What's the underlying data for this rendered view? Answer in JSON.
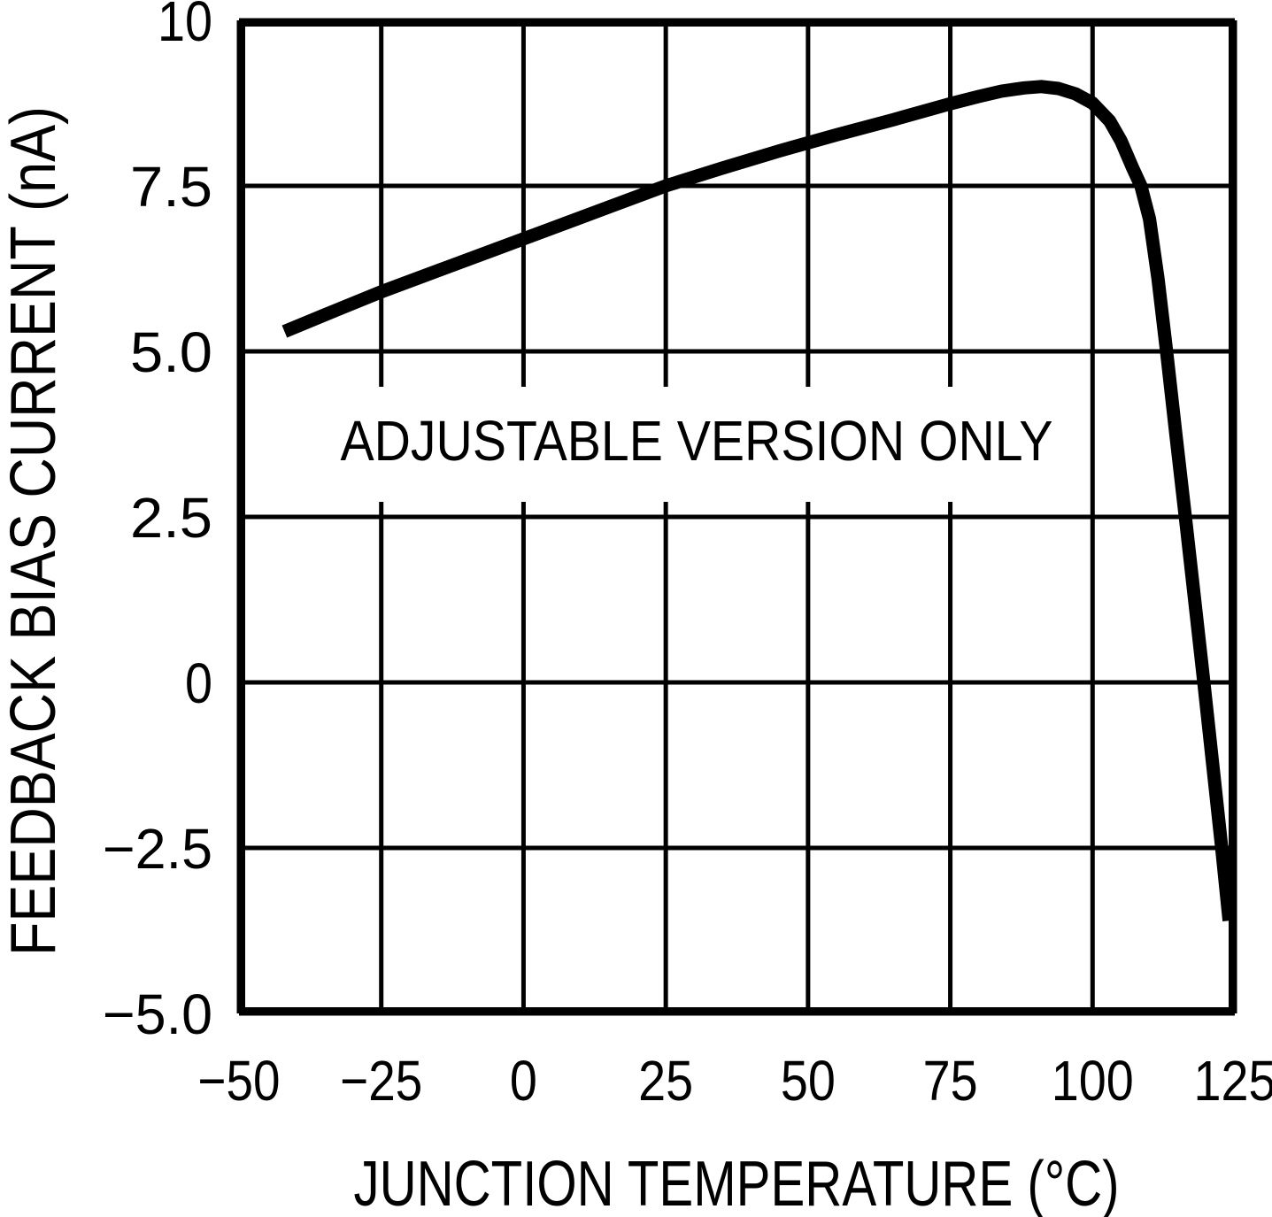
{
  "chart_data": {
    "type": "line",
    "title": "",
    "xlabel": "JUNCTION TEMPERATURE (°C)",
    "ylabel": "FEEDBACK BIAS CURRENT (nA)",
    "annotation": "ADJUSTABLE VERSION ONLY",
    "xlim": [
      -50,
      125
    ],
    "ylim": [
      -5,
      10
    ],
    "x_ticks": [
      -50,
      -25,
      0,
      25,
      50,
      75,
      100,
      125
    ],
    "x_tick_labels": [
      "−50",
      "−25",
      "0",
      "25",
      "50",
      "75",
      "100",
      "125"
    ],
    "y_ticks": [
      -5,
      -2.5,
      0,
      2.5,
      5,
      7.5,
      10
    ],
    "y_tick_labels": [
      "−5.0",
      "−2.5",
      "0",
      "2.5",
      "5.0",
      "7.5",
      "10"
    ],
    "grid": true,
    "legend": "none",
    "series": [
      {
        "name": "feedback bias current (adjustable version)",
        "x": [
          -42,
          -35,
          -25,
          -15,
          -5,
          5,
          15,
          25,
          35,
          45,
          55,
          65,
          75,
          80,
          84,
          88,
          91,
          94,
          97,
          100,
          103,
          105,
          107,
          108.5,
          110,
          111.5,
          113,
          114.7,
          116.3,
          118,
          119.5,
          121,
          122.7,
          124
        ],
        "y": [
          5.3,
          5.55,
          5.9,
          6.22,
          6.54,
          6.86,
          7.18,
          7.5,
          7.77,
          8.03,
          8.27,
          8.5,
          8.74,
          8.85,
          8.93,
          8.98,
          9.0,
          8.97,
          8.89,
          8.75,
          8.48,
          8.18,
          7.78,
          7.5,
          7.0,
          6.1,
          5.0,
          3.7,
          2.5,
          1.2,
          0.05,
          -1.15,
          -2.5,
          -3.6
        ]
      }
    ],
    "key_points": {
      "start": [
        -42,
        5.3
      ],
      "peak": [
        91,
        9.0
      ],
      "end": [
        124,
        -3.6
      ]
    },
    "colors": {
      "line": "#000000",
      "grid": "#000000",
      "text": "#000000",
      "background": "#ffffff"
    }
  }
}
